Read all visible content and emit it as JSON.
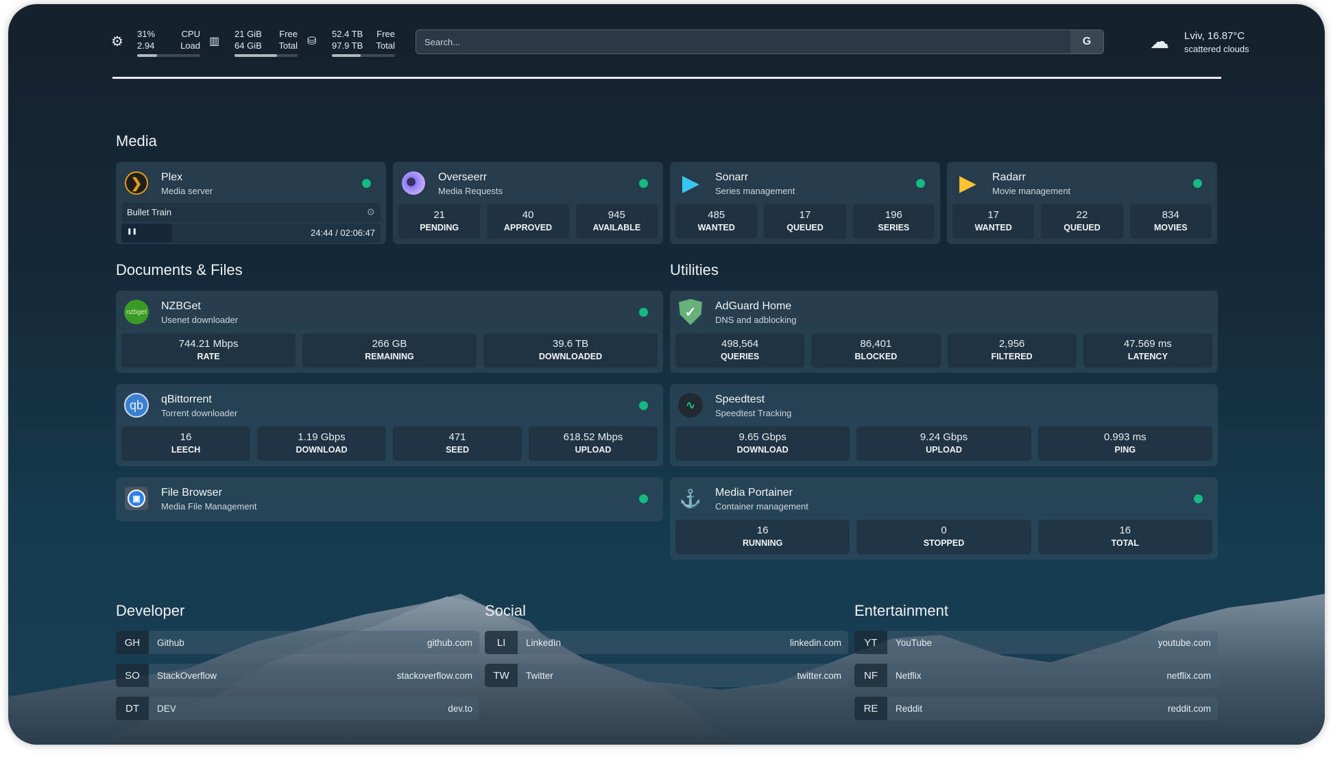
{
  "topbar": {
    "cpu": {
      "icon": "cpu-icon",
      "v1": "31%",
      "v2": "2.94",
      "l1": "CPU",
      "l2": "Load",
      "percent": 31
    },
    "ram": {
      "icon": "memory-icon",
      "v1": "21 GiB",
      "v2": "64 GiB",
      "l1": "Free",
      "l2": "Total",
      "percent": 67
    },
    "disk": {
      "icon": "hard-drive-icon",
      "v1": "52.4 TB",
      "v2": "97.9 TB",
      "l1": "Free",
      "l2": "Total",
      "percent": 46
    },
    "search": {
      "placeholder": "Search...",
      "engine_label": "G"
    },
    "weather": {
      "icon": "cloud-sun-icon",
      "location": "Lviv, 16.87°C",
      "condition": "scattered clouds"
    }
  },
  "status_color": "#15b982",
  "sections": {
    "media": "Media",
    "docs": "Documents & Files",
    "utilities": "Utilities",
    "developer": "Developer",
    "social": "Social",
    "entertainment": "Entertainment"
  },
  "media": [
    {
      "name": "Plex",
      "desc": "Media server",
      "icon": "plex-icon",
      "now_playing": {
        "title": "Bullet Train",
        "time": "24:44 / 02:06:47",
        "progress": 0.195
      }
    },
    {
      "name": "Overseerr",
      "desc": "Media Requests",
      "icon": "overseerr-icon",
      "stats": [
        {
          "v": "21",
          "l": "PENDING"
        },
        {
          "v": "40",
          "l": "APPROVED"
        },
        {
          "v": "945",
          "l": "AVAILABLE"
        }
      ]
    },
    {
      "name": "Sonarr",
      "desc": "Series management",
      "icon": "sonarr-icon",
      "stats": [
        {
          "v": "485",
          "l": "WANTED"
        },
        {
          "v": "17",
          "l": "QUEUED"
        },
        {
          "v": "196",
          "l": "SERIES"
        }
      ]
    },
    {
      "name": "Radarr",
      "desc": "Movie management",
      "icon": "radarr-icon",
      "stats": [
        {
          "v": "17",
          "l": "WANTED"
        },
        {
          "v": "22",
          "l": "QUEUED"
        },
        {
          "v": "834",
          "l": "MOVIES"
        }
      ]
    }
  ],
  "docs": [
    {
      "name": "NZBGet",
      "desc": "Usenet downloader",
      "icon": "nzbget-icon",
      "logo_text": "nzbget",
      "stats": [
        {
          "v": "744.21 Mbps",
          "l": "RATE"
        },
        {
          "v": "266 GB",
          "l": "REMAINING"
        },
        {
          "v": "39.6 TB",
          "l": "DOWNLOADED"
        }
      ]
    },
    {
      "name": "qBittorrent",
      "desc": "Torrent downloader",
      "icon": "qbittorrent-icon",
      "logo_text": "qb",
      "stats": [
        {
          "v": "16",
          "l": "LEECH"
        },
        {
          "v": "1.19 Gbps",
          "l": "DOWNLOAD"
        },
        {
          "v": "471",
          "l": "SEED"
        },
        {
          "v": "618.52 Mbps",
          "l": "UPLOAD"
        }
      ]
    },
    {
      "name": "File Browser",
      "desc": "Media File Management",
      "icon": "filebrowser-icon"
    }
  ],
  "utilities": [
    {
      "name": "AdGuard Home",
      "desc": "DNS and adblocking",
      "icon": "adguard-shield-icon",
      "stats": [
        {
          "v": "498,564",
          "l": "QUERIES"
        },
        {
          "v": "86,401",
          "l": "BLOCKED"
        },
        {
          "v": "2,956",
          "l": "FILTERED"
        },
        {
          "v": "47.569 ms",
          "l": "LATENCY"
        }
      ]
    },
    {
      "name": "Speedtest",
      "desc": "Speedtest Tracking",
      "icon": "pulse-icon",
      "stats": [
        {
          "v": "9.65 Gbps",
          "l": "DOWNLOAD"
        },
        {
          "v": "9.24 Gbps",
          "l": "UPLOAD"
        },
        {
          "v": "0.993 ms",
          "l": "PING"
        }
      ]
    },
    {
      "name": "Media Portainer",
      "desc": "Container management",
      "icon": "portainer-icon",
      "stats": [
        {
          "v": "16",
          "l": "RUNNING"
        },
        {
          "v": "0",
          "l": "STOPPED"
        },
        {
          "v": "16",
          "l": "TOTAL"
        }
      ]
    }
  ],
  "bookmarks": {
    "developer": [
      {
        "abbr": "GH",
        "name": "Github",
        "url": "github.com"
      },
      {
        "abbr": "SO",
        "name": "StackOverflow",
        "url": "stackoverflow.com"
      },
      {
        "abbr": "DT",
        "name": "DEV",
        "url": "dev.to"
      }
    ],
    "social": [
      {
        "abbr": "LI",
        "name": "LinkedIn",
        "url": "linkedin.com"
      },
      {
        "abbr": "TW",
        "name": "Twitter",
        "url": "twitter.com"
      }
    ],
    "entertainment": [
      {
        "abbr": "YT",
        "name": "YouTube",
        "url": "youtube.com"
      },
      {
        "abbr": "NF",
        "name": "Netflix",
        "url": "netflix.com"
      },
      {
        "abbr": "RE",
        "name": "Reddit",
        "url": "reddit.com"
      }
    ]
  }
}
